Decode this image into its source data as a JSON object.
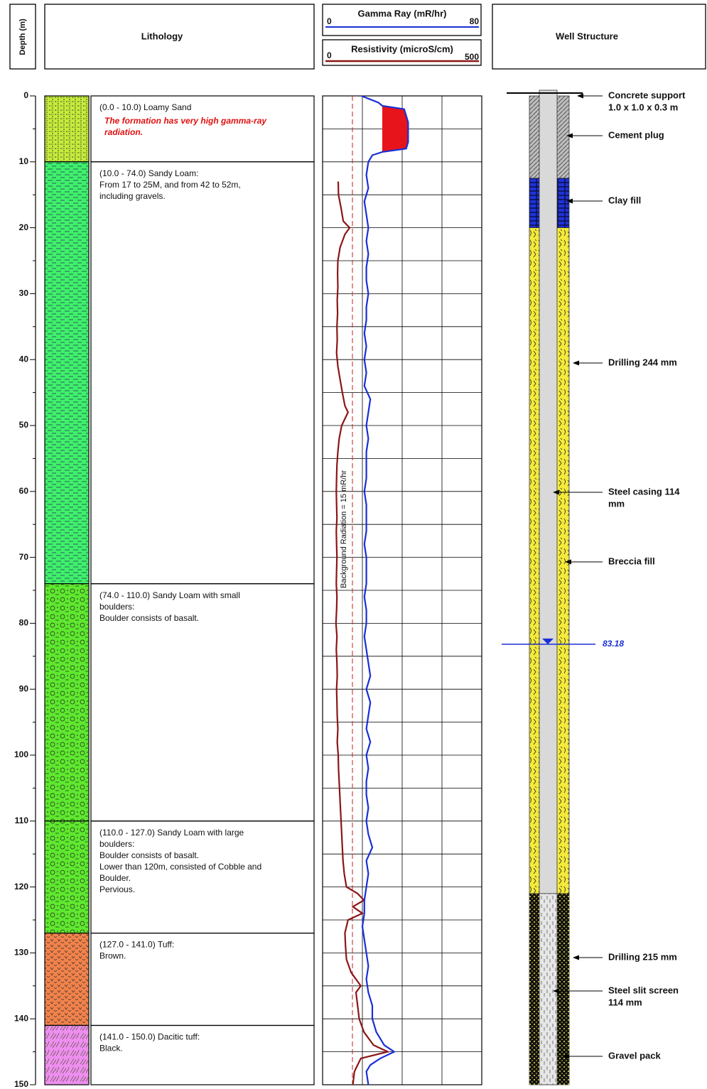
{
  "header": {
    "depth": "Depth (m)",
    "lithology": "Lithology",
    "gamma": "Gamma Ray (mR/hr)",
    "resistivity": "Resistivity (microS/cm)",
    "well": "Well Structure"
  },
  "depth_axis": {
    "lim": [
      0,
      150
    ],
    "ticks": [
      0,
      10,
      20,
      30,
      40,
      50,
      60,
      70,
      80,
      90,
      100,
      110,
      120,
      130,
      140,
      150
    ]
  },
  "lithology": [
    {
      "top": 0,
      "bottom": 10,
      "color": "#c6ec3a",
      "lines": [
        "(0.0 - 10.0) Loamy Sand"
      ],
      "note": [
        "The formation has very high gamma-ray",
        "radiation."
      ]
    },
    {
      "top": 10,
      "bottom": 74,
      "color": "#3ff06a",
      "lines": [
        "(10.0 - 74.0) Sandy Loam:",
        "From 17 to 25M, and from 42 to 52m,",
        "including gravels."
      ]
    },
    {
      "top": 74,
      "bottom": 110,
      "color": "#5ee82e",
      "lines": [
        "(74.0 - 110.0) Sandy Loam with small",
        "boulders:",
        "Boulder consists of basalt."
      ]
    },
    {
      "top": 110,
      "bottom": 127,
      "color": "#5ee82e",
      "lines": [
        "(110.0 - 127.0) Sandy Loam with large",
        "boulders:",
        "Boulder consists of basalt.",
        "Lower than 120m, consisted of Cobble and",
        "Boulder.",
        "Pervious."
      ]
    },
    {
      "top": 127,
      "bottom": 141,
      "color": "#f2824a",
      "lines": [
        "(127.0 - 141.0) Tuff:",
        "Brown."
      ]
    },
    {
      "top": 141,
      "bottom": 150,
      "color": "#ee8ef0",
      "lines": [
        "(141.0 - 150.0) Dacitic tuff:",
        "Black."
      ]
    }
  ],
  "log": {
    "gamma_ray": {
      "xlim": [
        0,
        80
      ],
      "color": "#1a2fd6",
      "fill": "#e8141c",
      "depth": [
        0,
        1,
        1.5,
        2,
        3,
        4,
        5,
        6,
        7,
        8,
        8.5,
        9,
        10,
        12,
        14,
        16,
        18,
        20,
        22,
        24,
        26,
        28,
        30,
        32,
        34,
        36,
        38,
        40,
        42,
        44,
        46,
        48,
        50,
        52,
        54,
        56,
        58,
        60,
        62,
        64,
        66,
        68,
        70,
        72,
        74,
        76,
        78,
        80,
        82,
        84,
        86,
        88,
        90,
        92,
        94,
        96,
        98,
        100,
        102,
        104,
        106,
        108,
        110,
        112,
        114,
        116,
        118,
        120,
        122,
        124,
        126,
        128,
        130,
        132,
        134,
        136,
        138,
        140,
        142,
        144,
        145,
        146,
        147,
        148,
        150
      ],
      "values": [
        19.5,
        28,
        30,
        41,
        42,
        43,
        43,
        43,
        43,
        42,
        30,
        25,
        23,
        22,
        23,
        21,
        22,
        23,
        22,
        23,
        22,
        22,
        23,
        22,
        22,
        21,
        22,
        21,
        22,
        21,
        24,
        23,
        22,
        23,
        22,
        22,
        22,
        21,
        22,
        22,
        22,
        21,
        22,
        22,
        22,
        21,
        22,
        22,
        21,
        22,
        23,
        24,
        22,
        24,
        23,
        22,
        24,
        22,
        23,
        22,
        22,
        23,
        22,
        23,
        25,
        22,
        23,
        22,
        21,
        21,
        20,
        21,
        22,
        23,
        22,
        23,
        25,
        25,
        27,
        31,
        36,
        29,
        24,
        22,
        23
      ]
    },
    "resistivity": {
      "xlim": [
        0,
        500
      ],
      "color": "#8b1616",
      "depth": [
        13,
        15,
        17,
        19,
        20,
        21,
        23,
        25,
        27,
        29,
        31,
        33,
        35,
        37,
        39,
        41,
        43,
        45,
        47,
        48,
        50,
        52,
        54,
        56,
        58,
        60,
        62,
        64,
        66,
        68,
        70,
        72,
        74,
        76,
        78,
        80,
        82,
        84,
        86,
        88,
        90,
        92,
        94,
        96,
        98,
        100,
        102,
        104,
        106,
        108,
        110,
        112,
        114,
        116,
        118,
        120,
        121,
        122,
        123,
        124,
        125,
        127,
        129,
        131,
        133,
        135,
        136,
        138,
        140,
        142,
        144,
        145,
        146,
        148,
        150
      ],
      "values": [
        49,
        50,
        58,
        65,
        85,
        70,
        55,
        48,
        47,
        48,
        46,
        47,
        45,
        46,
        44,
        48,
        55,
        62,
        70,
        80,
        60,
        52,
        48,
        45,
        44,
        43,
        44,
        45,
        43,
        44,
        45,
        44,
        43,
        45,
        44,
        42,
        45,
        43,
        45,
        46,
        44,
        45,
        46,
        48,
        46,
        49,
        50,
        52,
        54,
        56,
        58,
        60,
        62,
        64,
        68,
        75,
        110,
        130,
        95,
        125,
        80,
        70,
        72,
        75,
        90,
        120,
        105,
        110,
        115,
        130,
        160,
        205,
        120,
        100,
        95
      ]
    },
    "background": {
      "value": 15,
      "label": "Background Radiation = 15 mR/hr"
    }
  },
  "well_structure": {
    "annulus": [
      {
        "top": 0,
        "bottom": 12.5,
        "color": "#bdbdbd"
      },
      {
        "top": 12.5,
        "bottom": 20,
        "color": "#1f33d8"
      },
      {
        "top": 20,
        "bottom": 121,
        "color": "#f4ea3a"
      },
      {
        "top": 121,
        "bottom": 150,
        "color": "#111111"
      }
    ],
    "casing": [
      {
        "top": 0,
        "bottom": 121,
        "color": "#d9d9d9"
      },
      {
        "top": 121,
        "bottom": 150,
        "color": "#e6e6e6"
      }
    ],
    "water_level": 83.18,
    "annotations": [
      [
        "Concrete support",
        "1.0 x 1.0 x 0.3 m"
      ],
      [
        "Cement plug"
      ],
      [
        "Clay fill"
      ],
      [
        "Drilling 244 mm"
      ],
      [
        "Steel casing 114",
        "mm"
      ],
      [
        "Breccia fill"
      ],
      [
        "Drilling 215 mm"
      ],
      [
        "Steel slit screen",
        "114 mm"
      ],
      [
        "Gravel pack"
      ]
    ]
  }
}
